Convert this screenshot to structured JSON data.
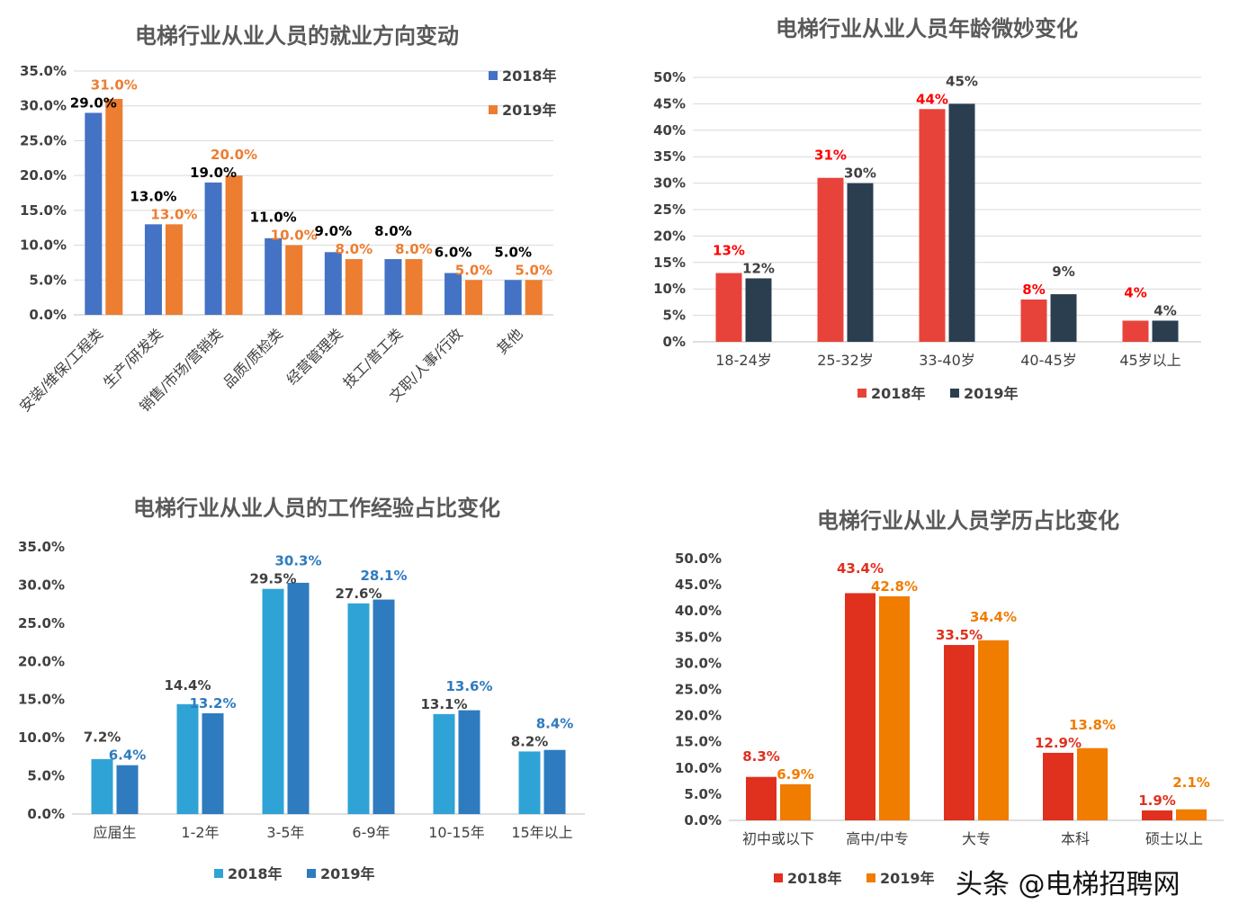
{
  "chart_data": [
    {
      "type": "bar",
      "title": "电梯行业从业人员的就业方向变动",
      "categories": [
        "安装/维保/工程类",
        "生产/研发类",
        "销售/市场/营销类",
        "品质/质检类",
        "经营管理类",
        "技工/普工类",
        "文职/人事/行政",
        "其他"
      ],
      "series": [
        {
          "name": "2018年",
          "values": [
            29.0,
            13.0,
            19.0,
            11.0,
            9.0,
            8.0,
            6.0,
            5.0
          ],
          "color": "#4472C4",
          "labels": [
            "29.0%",
            "13.0%",
            "19.0%",
            "11.0%",
            "9.0%",
            "8.0%",
            "6.0%",
            "5.0%"
          ],
          "label_color": "#000000"
        },
        {
          "name": "2019年",
          "values": [
            31.0,
            13.0,
            20.0,
            10.0,
            8.0,
            8.0,
            5.0,
            5.0
          ],
          "color": "#ED7D31",
          "labels": [
            "31.0%",
            "13.0%",
            "20.0%",
            "10.0%",
            "8.0%",
            "8.0%",
            "5.0%",
            "5.0%"
          ],
          "label_color": "#ED7D31"
        }
      ],
      "yticks": [
        "0.0%",
        "5.0%",
        "10.0%",
        "15.0%",
        "20.0%",
        "25.0%",
        "30.0%",
        "35.0%"
      ],
      "ylim": [
        0,
        35
      ],
      "grid": true,
      "legend": "top-right"
    },
    {
      "type": "bar",
      "title": "电梯行业从业人员年龄微妙变化",
      "categories": [
        "18-24岁",
        "25-32岁",
        "33-40岁",
        "40-45岁",
        "45岁以上"
      ],
      "series": [
        {
          "name": "2018年",
          "values": [
            13,
            31,
            44,
            8,
            4
          ],
          "color": "#E8433A",
          "labels": [
            "13%",
            "31%",
            "44%",
            "8%",
            "4%"
          ],
          "label_color": "#FF0000"
        },
        {
          "name": "2019年",
          "values": [
            12,
            30,
            45,
            9,
            4
          ],
          "color": "#2B3E50",
          "labels": [
            "12%",
            "30%",
            "45%",
            "9%",
            "4%"
          ],
          "label_color": "#404040"
        }
      ],
      "yticks": [
        "0%",
        "5%",
        "10%",
        "15%",
        "20%",
        "25%",
        "30%",
        "35%",
        "40%",
        "45%",
        "50%"
      ],
      "ylim": [
        0,
        50
      ],
      "grid": true,
      "legend": "bottom"
    },
    {
      "type": "bar",
      "title": "电梯行业从业人员的工作经验占比变化",
      "categories": [
        "应届生",
        "1-2年",
        "3-5年",
        "6-9年",
        "10-15年",
        "15年以上"
      ],
      "series": [
        {
          "name": "2018年",
          "values": [
            7.2,
            14.4,
            29.5,
            27.6,
            13.1,
            8.2
          ],
          "color": "#2FA3D6",
          "labels": [
            "7.2%",
            "14.4%",
            "29.5%",
            "27.6%",
            "13.1%",
            "8.2%"
          ],
          "label_color": "#404040"
        },
        {
          "name": "2019年",
          "values": [
            6.4,
            13.2,
            30.3,
            28.1,
            13.6,
            8.4
          ],
          "color": "#2E7BBF",
          "labels": [
            "6.4%",
            "13.2%",
            "30.3%",
            "28.1%",
            "13.6%",
            "8.4%"
          ],
          "label_color": "#2E7BBF"
        }
      ],
      "yticks": [
        "0.0%",
        "5.0%",
        "10.0%",
        "15.0%",
        "20.0%",
        "25.0%",
        "30.0%",
        "35.0%"
      ],
      "ylim": [
        0,
        35
      ],
      "grid": false,
      "legend": "bottom"
    },
    {
      "type": "bar",
      "title": "电梯行业从业人员学历占比变化",
      "categories": [
        "初中或以下",
        "高中/中专",
        "大专",
        "本科",
        "硕士以上"
      ],
      "series": [
        {
          "name": "2018年",
          "values": [
            8.3,
            43.4,
            33.5,
            12.9,
            1.9
          ],
          "color": "#E0301E",
          "labels": [
            "8.3%",
            "43.4%",
            "33.5%",
            "12.9%",
            "1.9%"
          ],
          "label_color": "#E0301E"
        },
        {
          "name": "2019年",
          "values": [
            6.9,
            42.8,
            34.4,
            13.8,
            2.1
          ],
          "color": "#F07C00",
          "labels": [
            "6.9%",
            "42.8%",
            "34.4%",
            "13.8%",
            "2.1%"
          ],
          "label_color": "#F07C00"
        }
      ],
      "yticks": [
        "0.0%",
        "5.0%",
        "10.0%",
        "15.0%",
        "20.0%",
        "25.0%",
        "30.0%",
        "35.0%",
        "40.0%",
        "45.0%",
        "50.0%"
      ],
      "ylim": [
        0,
        50
      ],
      "grid": false,
      "legend": "bottom"
    }
  ],
  "watermark": "头条 @电梯招聘网"
}
